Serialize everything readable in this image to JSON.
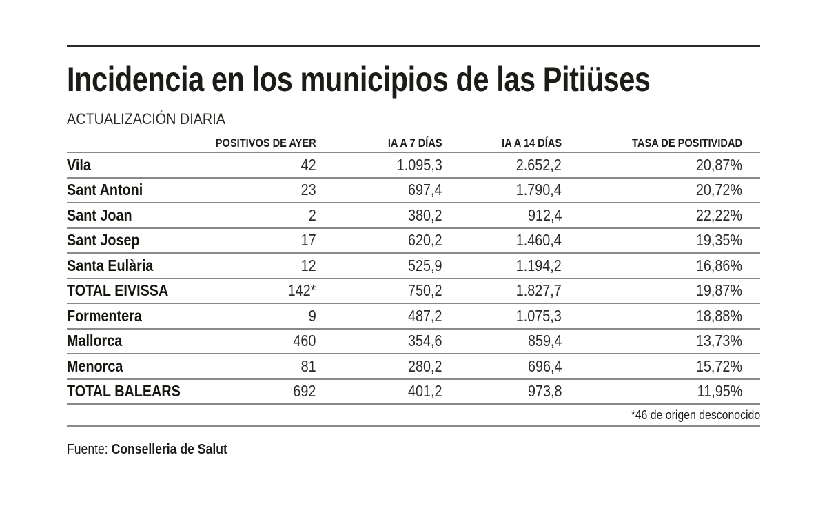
{
  "title": "Incidencia en los municipios de las Pitiüses",
  "subtitle": "ACTUALIZACIÓN DIARIA",
  "footnote": "*46 de origen desconocido",
  "source_label": "Fuente:",
  "source_name": "Conselleria de Salut",
  "chart_data": {
    "type": "table",
    "title": "Incidencia en los municipios de las Pitiüses",
    "columns": [
      "",
      "POSITIVOS DE AYER",
      "IA A 7 DÍAS",
      "IA A 14 DÍAS",
      "TASA DE POSITIVIDAD"
    ],
    "rows": [
      [
        "Vila",
        "42",
        "1.095,3",
        "2.652,2",
        "20,87%"
      ],
      [
        "Sant Antoni",
        "23",
        "697,4",
        "1.790,4",
        "20,72%"
      ],
      [
        "Sant Joan",
        "2",
        "380,2",
        "912,4",
        "22,22%"
      ],
      [
        "Sant Josep",
        "17",
        "620,2",
        "1.460,4",
        "19,35%"
      ],
      [
        "Santa Eulària",
        "12",
        "525,9",
        "1.194,2",
        "16,86%"
      ],
      [
        "TOTAL EIVISSA",
        "142*",
        "750,2",
        "1.827,7",
        "19,87%"
      ],
      [
        "Formentera",
        "9",
        "487,2",
        "1.075,3",
        "18,88%"
      ],
      [
        "Mallorca",
        "460",
        "354,6",
        "859,4",
        "13,73%"
      ],
      [
        "Menorca",
        "81",
        "280,2",
        "696,4",
        "15,72%"
      ],
      [
        "TOTAL BALEARS",
        "692",
        "401,2",
        "973,8",
        "11,95%"
      ]
    ]
  }
}
